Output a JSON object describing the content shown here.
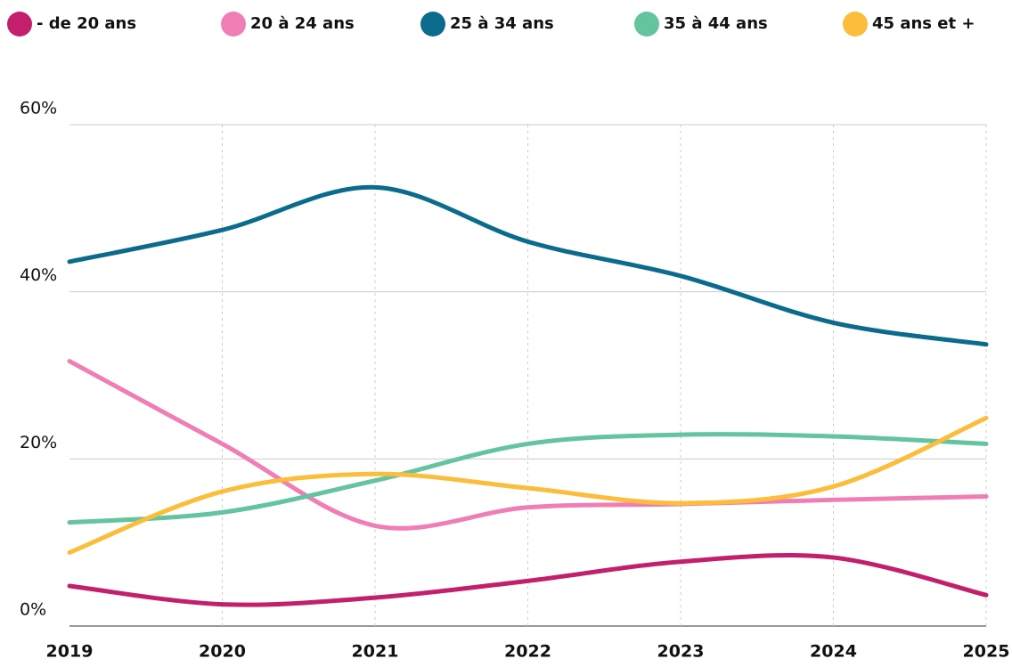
{
  "chart_data": {
    "type": "line",
    "x": [
      2019,
      2020,
      2021,
      2022,
      2023,
      2024,
      2025
    ],
    "xlim": [
      2019,
      2025
    ],
    "ylim": [
      0,
      60
    ],
    "yticks": [
      {
        "value": 0,
        "label": "0%"
      },
      {
        "value": 20,
        "label": "20%"
      },
      {
        "value": 40,
        "label": "40%"
      },
      {
        "value": 60,
        "label": "60%"
      }
    ],
    "grid": true,
    "legend": "top",
    "series": [
      {
        "name": "- de 20 ans",
        "color": "#c41f6c",
        "values": [
          4.8,
          2.6,
          3.4,
          5.4,
          7.7,
          8.2,
          3.7
        ]
      },
      {
        "name": "20 à 24 ans",
        "color": "#f07db4",
        "values": [
          31.7,
          21.8,
          12.0,
          14.2,
          14.6,
          15.1,
          15.5
        ]
      },
      {
        "name": "25 à 34 ans",
        "color": "#0b6b8d",
        "values": [
          43.6,
          47.4,
          52.5,
          46.0,
          41.9,
          36.3,
          33.7
        ]
      },
      {
        "name": "35 à 44 ans",
        "color": "#63c49e",
        "values": [
          12.4,
          13.6,
          17.4,
          21.8,
          22.9,
          22.7,
          21.8
        ]
      },
      {
        "name": "45 ans et +",
        "color": "#fbbd3a",
        "values": [
          8.8,
          16.1,
          18.2,
          16.5,
          14.7,
          16.7,
          24.9
        ]
      }
    ]
  }
}
